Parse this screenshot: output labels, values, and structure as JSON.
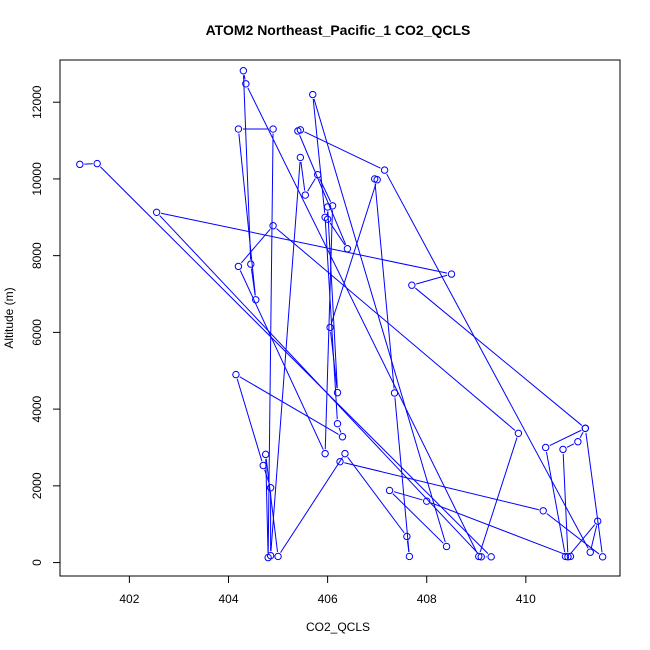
{
  "chart_data": {
    "type": "line",
    "title": "ATOM2 Northeast_Pacific_1 CO2_QCLS",
    "xlabel": "CO2_QCLS",
    "ylabel": "Altitude (m)",
    "xlim": [
      400.6,
      411.9
    ],
    "ylim": [
      -350,
      13100
    ],
    "xticks": [
      402,
      404,
      406,
      408,
      410
    ],
    "yticks": [
      0,
      2000,
      4000,
      6000,
      8000,
      10000,
      12000
    ],
    "grid": false,
    "series_color": "#0000ff",
    "series": [
      {
        "x": [
          401.0,
          401.35,
          409.3,
          409.1,
          402.55,
          408.5,
          407.7,
          411.2,
          411.05,
          410.75,
          410.85,
          411.45,
          411.3,
          407.15,
          405.45,
          405.4,
          406.4,
          406.0,
          406.0,
          406.2,
          406.05,
          407.0,
          406.95,
          407.35,
          407.65,
          407.6,
          406.35,
          405.0,
          404.75,
          404.8,
          404.9,
          404.2,
          404.55,
          404.45,
          404.3,
          404.35,
          409.05,
          409.85,
          404.9,
          404.2,
          405.95,
          406.1,
          405.8,
          405.55,
          405.45,
          404.85,
          404.85,
          404.7,
          404.15,
          406.3,
          406.2,
          405.95,
          405.7,
          408.4,
          407.25,
          408.0,
          410.9,
          410.8,
          410.4,
          411.2,
          411.55,
          410.35,
          406.25
        ],
        "y": [
          10380,
          10400,
          150,
          150,
          9130,
          7520,
          7230,
          3500,
          3150,
          2950,
          150,
          1080,
          270,
          10230,
          11280,
          11250,
          8180,
          8950,
          9270,
          4430,
          6130,
          9980,
          10000,
          4420,
          160,
          680,
          2840,
          160,
          2820,
          130,
          11300,
          11300,
          6850,
          7780,
          12820,
          12480,
          160,
          3370,
          8780,
          7720,
          2840,
          9300,
          10110,
          9580,
          10560,
          180,
          1950,
          2530,
          4900,
          3280,
          3620,
          9000,
          12200,
          420,
          1880,
          1600,
          160,
          160,
          3000,
          3500,
          150,
          1350,
          2630
        ]
      }
    ]
  }
}
